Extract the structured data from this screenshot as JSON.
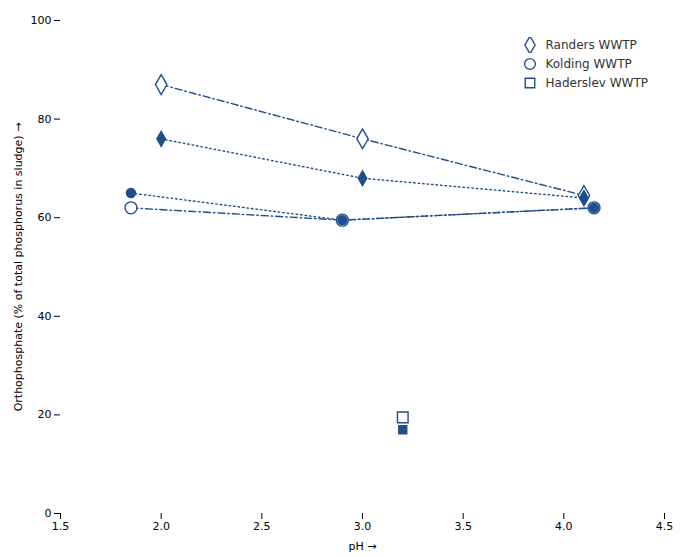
{
  "chart_data": {
    "type": "line",
    "xlabel": "pH",
    "ylabel": "Orthophosphate (% of total phosphorus in sludge)",
    "xlim": [
      1.5,
      4.5
    ],
    "ylim": [
      0,
      100
    ],
    "xticks": [
      1.5,
      {
        "value": 2.0,
        "label": "2.0"
      },
      2.5,
      {
        "value": 3.0,
        "label": "3.0"
      },
      3.5,
      {
        "value": 4.0,
        "label": "4.0"
      },
      4.5
    ],
    "yticks": [
      0,
      20,
      40,
      60,
      80,
      100
    ],
    "grid": false,
    "legend": "upper right",
    "color": "#1f4e8c",
    "series": [
      {
        "name": "Randers WWTP",
        "x": [
          2.0,
          3.0,
          4.1
        ],
        "values": [
          87.0,
          76.0,
          64.5
        ],
        "marker": "diamond-open",
        "line_style": "dashdot"
      },
      {
        "x": [
          2.0,
          3.0,
          4.1
        ],
        "values": [
          76.0,
          68.0,
          64.0
        ],
        "marker": "diamond",
        "line_style": "dotted"
      },
      {
        "name": "Kolding WWTP",
        "x": [
          1.85,
          2.9,
          4.15
        ],
        "values": [
          62.0,
          59.5,
          62.0
        ],
        "marker": "circle-open",
        "line_style": "dashdot"
      },
      {
        "x": [
          1.85,
          2.9,
          4.15
        ],
        "values": [
          65.0,
          59.5,
          62.0
        ],
        "marker": "circle",
        "line_style": "dotted"
      },
      {
        "name": "Haderslev WWTP",
        "x": [
          3.2
        ],
        "values": [
          19.5
        ],
        "marker": "square-open",
        "line_style": "none"
      },
      {
        "x": [
          3.2
        ],
        "values": [
          17.0
        ],
        "marker": "square",
        "line_style": "none"
      }
    ]
  }
}
